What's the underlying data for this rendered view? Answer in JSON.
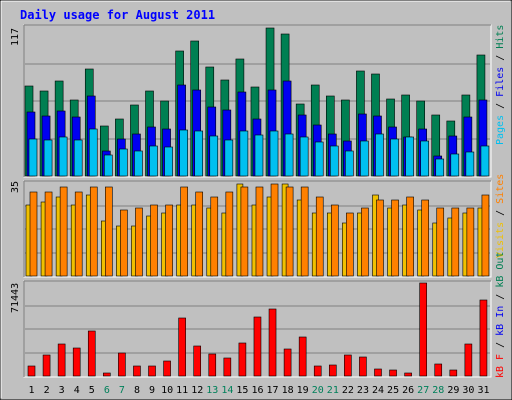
{
  "chart_data": {
    "type": "bar",
    "title": "Daily usage for August 2011",
    "categories": [
      "1",
      "2",
      "3",
      "4",
      "5",
      "6",
      "7",
      "8",
      "9",
      "10",
      "11",
      "12",
      "13",
      "14",
      "15",
      "16",
      "17",
      "18",
      "19",
      "20",
      "21",
      "22",
      "23",
      "24",
      "25",
      "26",
      "27",
      "28",
      "29",
      "30",
      "31"
    ],
    "weekend_days": [
      "6",
      "7",
      "13",
      "14",
      "20",
      "21",
      "27",
      "28"
    ],
    "grid": true,
    "panels": [
      {
        "name": "pages-files-hits",
        "ymax_label": "117",
        "ylim": [
          0,
          117
        ],
        "legend": [
          {
            "text": "Pages",
            "color": "#00c0f0"
          },
          {
            "text": "Files",
            "color": "#0000f0"
          },
          {
            "text": "Hits",
            "color": "#007f52"
          }
        ],
        "series": [
          {
            "name": "Hits",
            "color": "#007f52",
            "values": [
              72,
              68,
              76,
              61,
              86,
              40,
              46,
              57,
              68,
              60,
              100,
              108,
              87,
              77,
              94,
              71,
              119,
              114,
              58,
              73,
              64,
              61,
              84,
              82,
              62,
              65,
              60,
              49,
              44,
              65,
              97
            ]
          },
          {
            "name": "Files",
            "color": "#0000f0",
            "values": [
              51,
              48,
              52,
              47,
              64,
              20,
              30,
              34,
              39,
              38,
              73,
              69,
              55,
              53,
              67,
              46,
              69,
              76,
              49,
              41,
              34,
              28,
              50,
              48,
              39,
              31,
              38,
              16,
              32,
              47,
              61
            ]
          },
          {
            "name": "Pages",
            "color": "#00c0f0",
            "values": [
              30,
              29,
              31,
              29,
              38,
              17,
              22,
              20,
              24,
              23,
              37,
              36,
              32,
              29,
              36,
              33,
              36,
              34,
              31,
              27,
              24,
              20,
              28,
              34,
              30,
              31,
              28,
              14,
              18,
              19,
              24
            ]
          }
        ]
      },
      {
        "name": "visits-sites",
        "ymax_label": "35",
        "ylim": [
          0,
          35
        ],
        "legend": [
          {
            "text": "Visits",
            "color": "#f0c000"
          },
          {
            "text": "Sites",
            "color": "#ff8000"
          }
        ],
        "series": [
          {
            "name": "Sites",
            "color": "#ff8000",
            "values": [
              32,
              32,
              34,
              32,
              34,
              34,
              25,
              26,
              27,
              27,
              34,
              32,
              30,
              32,
              34,
              34,
              35,
              34,
              34,
              30,
              27,
              24,
              26,
              29,
              29,
              30,
              29,
              26,
              26,
              26,
              31
            ]
          },
          {
            "name": "Visits",
            "color": "#f0c000",
            "values": [
              27,
              28,
              30,
              27,
              31,
              21,
              19,
              19,
              23,
              24,
              27,
              27,
              26,
              24,
              35,
              27,
              30,
              35,
              29,
              24,
              24,
              20,
              24,
              31,
              26,
              27,
              25,
              20,
              22,
              24,
              26
            ]
          }
        ]
      },
      {
        "name": "kbytes",
        "ymax_label": "71443",
        "ylim": [
          0,
          71443
        ],
        "legend": [
          {
            "text": "kB F",
            "color": "#ff0000"
          },
          {
            "text": "kB In",
            "color": "#0000f0"
          },
          {
            "text": "kB Out",
            "color": "#007f52"
          }
        ],
        "series": [
          {
            "name": "kB F",
            "color": "#ff0000",
            "values": [
              8000,
              16000,
              24500,
              22000,
              35000,
              2500,
              18000,
              7500,
              8000,
              12000,
              45000,
              23000,
              17000,
              14000,
              26000,
              46000,
              52000,
              21000,
              30000,
              7500,
              8500,
              16000,
              15000,
              5500,
              4800,
              2500,
              72000,
              9000,
              5000,
              25000,
              59000
            ]
          }
        ]
      }
    ]
  }
}
